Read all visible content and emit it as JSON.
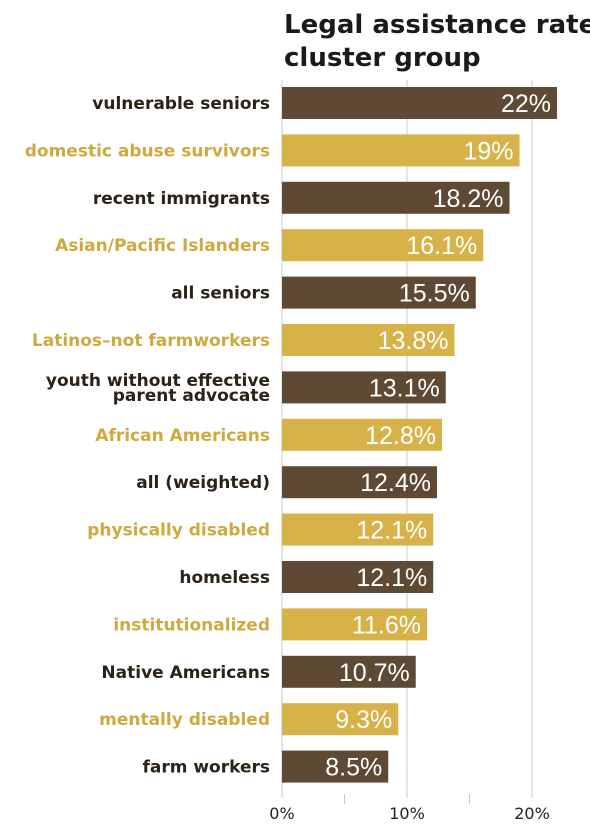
{
  "chart_data": {
    "type": "bar",
    "orientation": "horizontal",
    "title": [
      "Legal assistance rates",
      "cluster group"
    ],
    "categories": [
      "vulnerable seniors",
      "domestic abuse survivors",
      "recent immigrants",
      "Asian/Pacific Islanders",
      "all seniors",
      "Latinos–not farmworkers",
      "youth without effective parent advocate",
      "African Americans",
      "all (weighted)",
      "physically disabled",
      "homeless",
      "institutionalized",
      "Native Americans",
      "mentally disabled",
      "farm workers"
    ],
    "category_lines": [
      [
        "vulnerable seniors"
      ],
      [
        "domestic abuse survivors"
      ],
      [
        "recent immigrants"
      ],
      [
        "Asian/Pacific Islanders"
      ],
      [
        "all seniors"
      ],
      [
        "Latinos–not farmworkers"
      ],
      [
        "youth without effective",
        "parent advocate"
      ],
      [
        "African Americans"
      ],
      [
        "all (weighted)"
      ],
      [
        "physically disabled"
      ],
      [
        "homeless"
      ],
      [
        "institutionalized"
      ],
      [
        "Native Americans"
      ],
      [
        "mentally disabled"
      ],
      [
        "farm workers"
      ]
    ],
    "values": [
      22,
      19,
      18.2,
      16.1,
      15.5,
      13.8,
      13.1,
      12.8,
      12.4,
      12.1,
      12.1,
      11.6,
      10.7,
      9.3,
      8.5
    ],
    "value_labels": [
      "22%",
      "19%",
      "18.2%",
      "16.1%",
      "15.5%",
      "13.8%",
      "13.1%",
      "12.8%",
      "12.4%",
      "12.1%",
      "12.1%",
      "11.6%",
      "10.7%",
      "9.3%",
      "8.5%"
    ],
    "xlim": [
      0,
      25
    ],
    "x_ticks": [
      0,
      10,
      20
    ],
    "x_tick_labels": [
      "0%",
      "10%",
      "20%"
    ],
    "x_minor_ticks": [
      5,
      15,
      25
    ],
    "grid": true,
    "colors": {
      "dark": "#5e4a34",
      "gold": "#d6b248",
      "grid": "#c8c8c8"
    }
  }
}
